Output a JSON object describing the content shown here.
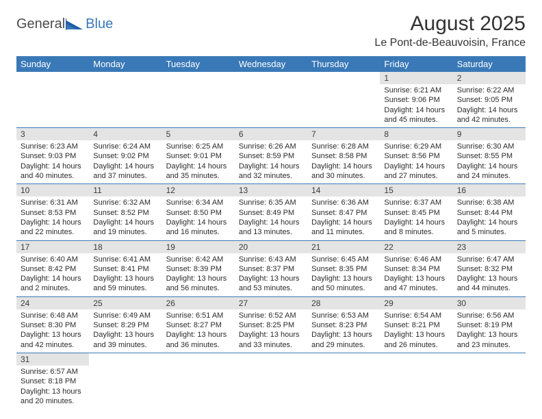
{
  "logo": {
    "word1": "General",
    "word2": "Blue"
  },
  "title": "August 2025",
  "location": "Le Pont-de-Beauvoisin, France",
  "colors": {
    "header_bg": "#3a79b7",
    "header_fg": "#ffffff",
    "daynum_bg": "#e4e4e4",
    "daynum_fg": "#3b3b3b",
    "cell_border": "#3a79b7",
    "text": "#2b2b2b",
    "logo_gray": "#4a4a4a",
    "logo_blue": "#3a79b7"
  },
  "weekdays": [
    "Sunday",
    "Monday",
    "Tuesday",
    "Wednesday",
    "Thursday",
    "Friday",
    "Saturday"
  ],
  "weeks": [
    [
      null,
      null,
      null,
      null,
      null,
      {
        "n": "1",
        "sr": "6:21 AM",
        "ss": "9:06 PM",
        "dl": "14 hours and 45 minutes."
      },
      {
        "n": "2",
        "sr": "6:22 AM",
        "ss": "9:05 PM",
        "dl": "14 hours and 42 minutes."
      }
    ],
    [
      {
        "n": "3",
        "sr": "6:23 AM",
        "ss": "9:03 PM",
        "dl": "14 hours and 40 minutes."
      },
      {
        "n": "4",
        "sr": "6:24 AM",
        "ss": "9:02 PM",
        "dl": "14 hours and 37 minutes."
      },
      {
        "n": "5",
        "sr": "6:25 AM",
        "ss": "9:01 PM",
        "dl": "14 hours and 35 minutes."
      },
      {
        "n": "6",
        "sr": "6:26 AM",
        "ss": "8:59 PM",
        "dl": "14 hours and 32 minutes."
      },
      {
        "n": "7",
        "sr": "6:28 AM",
        "ss": "8:58 PM",
        "dl": "14 hours and 30 minutes."
      },
      {
        "n": "8",
        "sr": "6:29 AM",
        "ss": "8:56 PM",
        "dl": "14 hours and 27 minutes."
      },
      {
        "n": "9",
        "sr": "6:30 AM",
        "ss": "8:55 PM",
        "dl": "14 hours and 24 minutes."
      }
    ],
    [
      {
        "n": "10",
        "sr": "6:31 AM",
        "ss": "8:53 PM",
        "dl": "14 hours and 22 minutes."
      },
      {
        "n": "11",
        "sr": "6:32 AM",
        "ss": "8:52 PM",
        "dl": "14 hours and 19 minutes."
      },
      {
        "n": "12",
        "sr": "6:34 AM",
        "ss": "8:50 PM",
        "dl": "14 hours and 16 minutes."
      },
      {
        "n": "13",
        "sr": "6:35 AM",
        "ss": "8:49 PM",
        "dl": "14 hours and 13 minutes."
      },
      {
        "n": "14",
        "sr": "6:36 AM",
        "ss": "8:47 PM",
        "dl": "14 hours and 11 minutes."
      },
      {
        "n": "15",
        "sr": "6:37 AM",
        "ss": "8:45 PM",
        "dl": "14 hours and 8 minutes."
      },
      {
        "n": "16",
        "sr": "6:38 AM",
        "ss": "8:44 PM",
        "dl": "14 hours and 5 minutes."
      }
    ],
    [
      {
        "n": "17",
        "sr": "6:40 AM",
        "ss": "8:42 PM",
        "dl": "14 hours and 2 minutes."
      },
      {
        "n": "18",
        "sr": "6:41 AM",
        "ss": "8:41 PM",
        "dl": "13 hours and 59 minutes."
      },
      {
        "n": "19",
        "sr": "6:42 AM",
        "ss": "8:39 PM",
        "dl": "13 hours and 56 minutes."
      },
      {
        "n": "20",
        "sr": "6:43 AM",
        "ss": "8:37 PM",
        "dl": "13 hours and 53 minutes."
      },
      {
        "n": "21",
        "sr": "6:45 AM",
        "ss": "8:35 PM",
        "dl": "13 hours and 50 minutes."
      },
      {
        "n": "22",
        "sr": "6:46 AM",
        "ss": "8:34 PM",
        "dl": "13 hours and 47 minutes."
      },
      {
        "n": "23",
        "sr": "6:47 AM",
        "ss": "8:32 PM",
        "dl": "13 hours and 44 minutes."
      }
    ],
    [
      {
        "n": "24",
        "sr": "6:48 AM",
        "ss": "8:30 PM",
        "dl": "13 hours and 42 minutes."
      },
      {
        "n": "25",
        "sr": "6:49 AM",
        "ss": "8:29 PM",
        "dl": "13 hours and 39 minutes."
      },
      {
        "n": "26",
        "sr": "6:51 AM",
        "ss": "8:27 PM",
        "dl": "13 hours and 36 minutes."
      },
      {
        "n": "27",
        "sr": "6:52 AM",
        "ss": "8:25 PM",
        "dl": "13 hours and 33 minutes."
      },
      {
        "n": "28",
        "sr": "6:53 AM",
        "ss": "8:23 PM",
        "dl": "13 hours and 29 minutes."
      },
      {
        "n": "29",
        "sr": "6:54 AM",
        "ss": "8:21 PM",
        "dl": "13 hours and 26 minutes."
      },
      {
        "n": "30",
        "sr": "6:56 AM",
        "ss": "8:19 PM",
        "dl": "13 hours and 23 minutes."
      }
    ],
    [
      {
        "n": "31",
        "sr": "6:57 AM",
        "ss": "8:18 PM",
        "dl": "13 hours and 20 minutes."
      },
      null,
      null,
      null,
      null,
      null,
      null
    ]
  ],
  "labels": {
    "sunrise": "Sunrise:",
    "sunset": "Sunset:",
    "daylight": "Daylight:"
  }
}
